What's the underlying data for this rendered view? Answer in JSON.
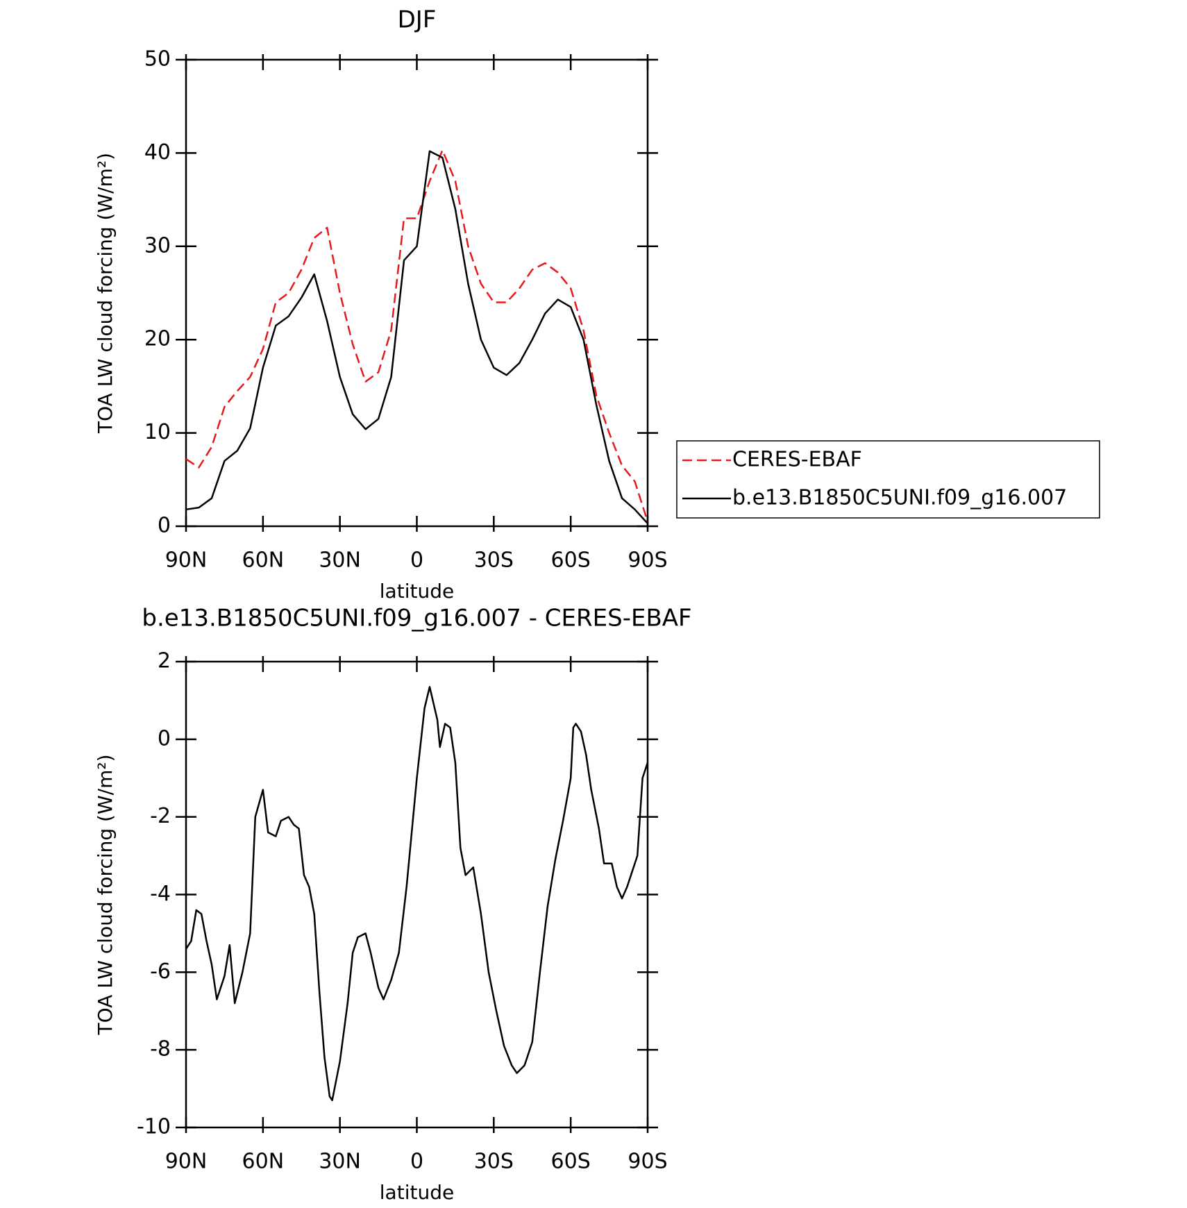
{
  "chart_data": [
    {
      "type": "line",
      "title": "DJF",
      "xlabel": "latitude",
      "ylabel": "TOA LW cloud forcing (W/m²)",
      "x": [
        90,
        85,
        80,
        75,
        70,
        65,
        60,
        55,
        50,
        45,
        40,
        35,
        30,
        25,
        20,
        15,
        10,
        5,
        0,
        -5,
        -10,
        -15,
        -20,
        -25,
        -30,
        -35,
        -40,
        -45,
        -50,
        -55,
        -60,
        -65,
        -70,
        -75,
        -80,
        -85,
        -90
      ],
      "series": [
        {
          "name": "CERES-EBAF",
          "color": "#e41a1c",
          "dashed": true,
          "values": [
            7.2,
            6.3,
            8.5,
            12.8,
            14.5,
            16,
            19,
            24,
            25,
            27.5,
            30.9,
            32,
            25,
            19.5,
            15.5,
            16.5,
            21,
            33,
            33,
            37,
            40.3,
            37,
            30,
            26,
            24,
            24,
            25.5,
            27.5,
            28.2,
            27.2,
            25.5,
            21,
            14,
            10,
            6.5,
            4.8,
            0.5
          ]
        },
        {
          "name": "b.e13.B1850C5UNI.f09_g16.007",
          "color": "#000000",
          "dashed": false,
          "values": [
            1.8,
            2,
            3,
            7,
            8.1,
            10.5,
            17,
            21.5,
            22.5,
            24.5,
            27,
            22,
            16,
            12,
            10.4,
            11.5,
            16,
            28.5,
            30,
            40.2,
            39.5,
            34,
            26,
            20,
            17,
            16.2,
            17.5,
            20,
            22.8,
            24.3,
            23.5,
            20,
            13,
            7,
            3,
            1.8,
            0.3
          ]
        }
      ],
      "xlim": [
        90,
        -90
      ],
      "xticks": [
        {
          "value": 90,
          "label": "90N"
        },
        {
          "value": 60,
          "label": "60N"
        },
        {
          "value": 30,
          "label": "30N"
        },
        0,
        {
          "value": -30,
          "label": "30S"
        },
        {
          "value": -60,
          "label": "60S"
        },
        {
          "value": -90,
          "label": "90S"
        }
      ],
      "ylim": [
        0,
        50
      ],
      "yticks": [
        0,
        10,
        20,
        30,
        40,
        50
      ],
      "legend": "right"
    },
    {
      "type": "line",
      "title": "b.e13.B1850C5UNI.f09_g16.007 - CERES-EBAF",
      "xlabel": "latitude",
      "ylabel": "TOA LW cloud forcing (W/m²)",
      "x": [
        90,
        88,
        86,
        84,
        82,
        80,
        78,
        75,
        73,
        71,
        68,
        65,
        63,
        60,
        58,
        55,
        53,
        50,
        48,
        46,
        44,
        42,
        40,
        38,
        36,
        34,
        33,
        30,
        27,
        25,
        23,
        20,
        18,
        15,
        13,
        10,
        7,
        4,
        0,
        -3,
        -5,
        -8,
        -9,
        -11,
        -13,
        -15,
        -17,
        -19,
        -22,
        -25,
        -28,
        -31,
        -34,
        -37,
        -39,
        -42,
        -45,
        -48,
        -51,
        -54,
        -57,
        -60,
        -61,
        -62,
        -64,
        -66,
        -68,
        -71,
        -73,
        -76,
        -78,
        -80,
        -82,
        -84,
        -86,
        -88,
        -90
      ],
      "series": [
        {
          "color": "#000000",
          "dashed": false,
          "values": [
            -5.4,
            -5.2,
            -4.4,
            -4.5,
            -5.2,
            -5.8,
            -6.7,
            -6.1,
            -5.3,
            -6.8,
            -6.0,
            -5.0,
            -2.0,
            -1.3,
            -2.4,
            -2.5,
            -2.1,
            -2.0,
            -2.2,
            -2.3,
            -3.5,
            -3.8,
            -4.5,
            -6.5,
            -8.2,
            -9.2,
            -9.3,
            -8.3,
            -6.8,
            -5.5,
            -5.1,
            -5.0,
            -5.5,
            -6.4,
            -6.7,
            -6.2,
            -5.5,
            -3.8,
            -1.0,
            0.8,
            1.35,
            0.5,
            -0.2,
            0.4,
            0.3,
            -0.6,
            -2.8,
            -3.5,
            -3.3,
            -4.5,
            -6.0,
            -7.0,
            -7.9,
            -8.4,
            -8.6,
            -8.4,
            -7.8,
            -6.0,
            -4.3,
            -3.1,
            -2.1,
            -1.0,
            0.3,
            0.4,
            0.2,
            -0.4,
            -1.3,
            -2.3,
            -3.2,
            -3.2,
            -3.8,
            -4.1,
            -3.8,
            -3.4,
            -3.0,
            -1.0,
            -0.6
          ]
        }
      ],
      "xlim": [
        90,
        -90
      ],
      "xticks": [
        {
          "value": 90,
          "label": "90N"
        },
        {
          "value": 60,
          "label": "60N"
        },
        {
          "value": 30,
          "label": "30N"
        },
        0,
        {
          "value": -30,
          "label": "30S"
        },
        {
          "value": -60,
          "label": "60S"
        },
        {
          "value": -90,
          "label": "90S"
        }
      ],
      "ylim": [
        -10,
        2
      ],
      "yticks": [
        -10,
        -8,
        -6,
        -4,
        -2,
        0,
        2
      ]
    }
  ]
}
